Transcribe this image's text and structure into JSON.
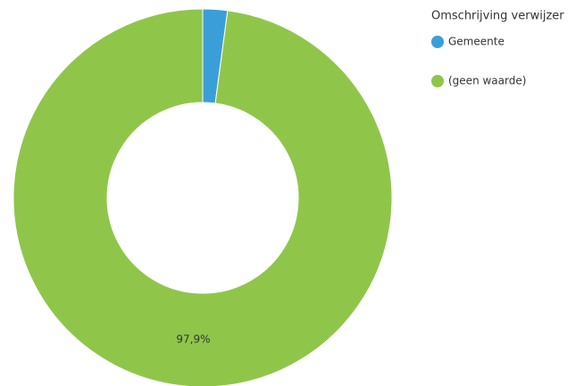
{
  "chart_data": {
    "type": "pie",
    "legend_title": "Omschrijving verwijzer",
    "categories": [
      "Gemeente",
      "(geen waarde)"
    ],
    "values": [
      2.1,
      97.9
    ],
    "value_labels": [
      null,
      "97,9%"
    ],
    "colors": [
      "#3a9fd8",
      "#8fc64a"
    ],
    "donut": true
  }
}
